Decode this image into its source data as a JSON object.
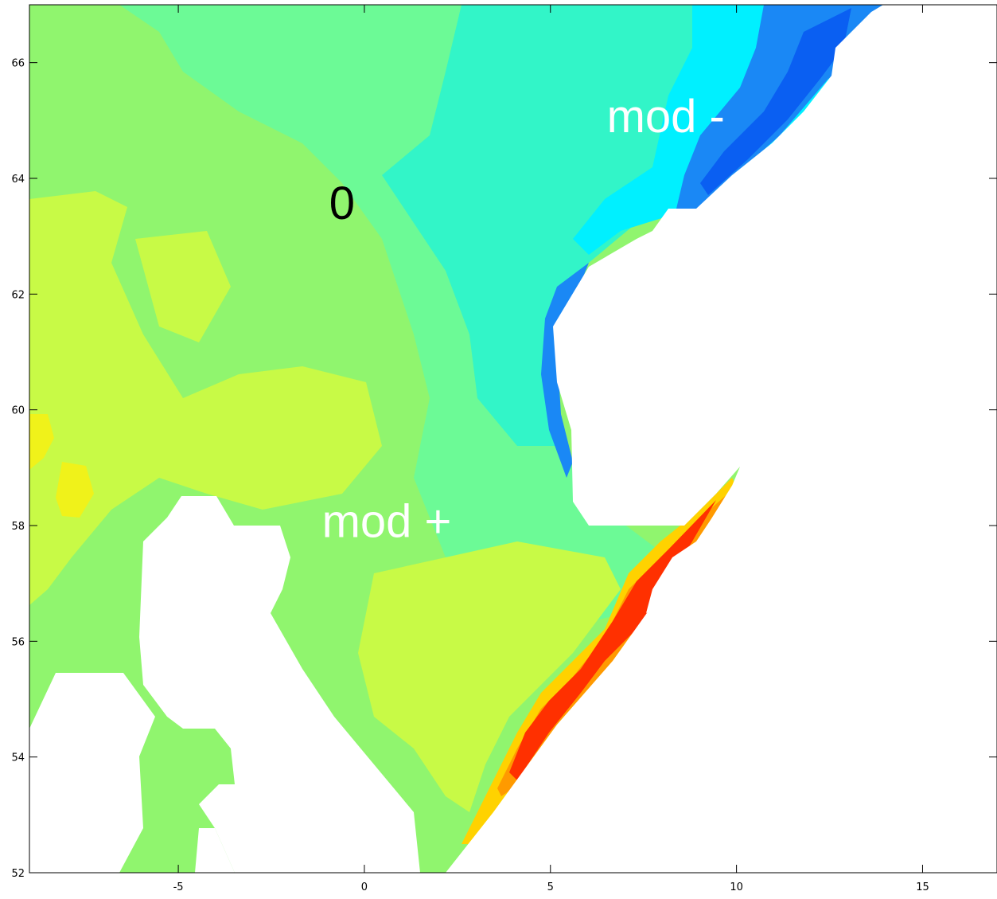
{
  "chart_data": {
    "type": "heatmap",
    "title": "",
    "xlabel": "",
    "ylabel": "",
    "xlim": [
      -9,
      17
    ],
    "ylim": [
      52,
      67
    ],
    "x_ticks": [
      "-5",
      "0",
      "5",
      "10",
      "15"
    ],
    "y_ticks": [
      "52",
      "54",
      "56",
      "58",
      "60",
      "62",
      "64",
      "66"
    ],
    "colormap": "jet",
    "masked_color": "#ffffff",
    "levels": [
      "#0a5ff2",
      "#1a88f5",
      "#12c2f2",
      "#00f0ff",
      "#32f5c8",
      "#6cfa96",
      "#90f56e",
      "#c8fa46",
      "#f0f21a",
      "#ffd200",
      "#ff9a00",
      "#ff5a00",
      "#ff3000"
    ],
    "annotations": [
      {
        "text": "mod -",
        "x": 8.1,
        "y": 64.8,
        "color": "#ffffff"
      },
      {
        "text": "0",
        "x": -0.6,
        "y": 63.3,
        "color": "#000000"
      },
      {
        "text": "mod +",
        "x": 0.6,
        "y": 57.8,
        "color": "#ffffff"
      }
    ]
  }
}
